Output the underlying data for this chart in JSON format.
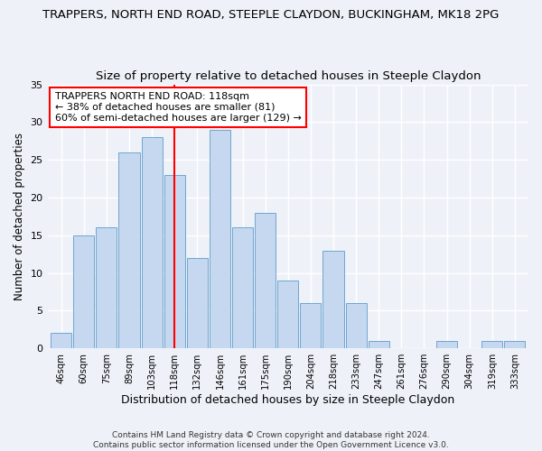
{
  "title": "TRAPPERS, NORTH END ROAD, STEEPLE CLAYDON, BUCKINGHAM, MK18 2PG",
  "subtitle": "Size of property relative to detached houses in Steeple Claydon",
  "xlabel": "Distribution of detached houses by size in Steeple Claydon",
  "ylabel": "Number of detached properties",
  "categories": [
    "46sqm",
    "60sqm",
    "75sqm",
    "89sqm",
    "103sqm",
    "118sqm",
    "132sqm",
    "146sqm",
    "161sqm",
    "175sqm",
    "190sqm",
    "204sqm",
    "218sqm",
    "233sqm",
    "247sqm",
    "261sqm",
    "276sqm",
    "290sqm",
    "304sqm",
    "319sqm",
    "333sqm"
  ],
  "values": [
    2,
    15,
    16,
    26,
    28,
    23,
    12,
    29,
    16,
    18,
    9,
    6,
    13,
    6,
    1,
    0,
    0,
    1,
    0,
    1,
    1
  ],
  "bar_color": "#c5d8f0",
  "bar_edge_color": "#6ea6d0",
  "vline_x_index": 5,
  "vline_color": "red",
  "ylim": [
    0,
    35
  ],
  "yticks": [
    0,
    5,
    10,
    15,
    20,
    25,
    30,
    35
  ],
  "annotation_box_text": "TRAPPERS NORTH END ROAD: 118sqm\n← 38% of detached houses are smaller (81)\n60% of semi-detached houses are larger (129) →",
  "title_fontsize": 9.5,
  "subtitle_fontsize": 9.5,
  "xlabel_fontsize": 9,
  "ylabel_fontsize": 8.5,
  "annotation_fontsize": 8,
  "footer_text": "Contains HM Land Registry data © Crown copyright and database right 2024.\nContains public sector information licensed under the Open Government Licence v3.0.",
  "background_color": "#eef2f8",
  "grid_color": "#ffffff"
}
